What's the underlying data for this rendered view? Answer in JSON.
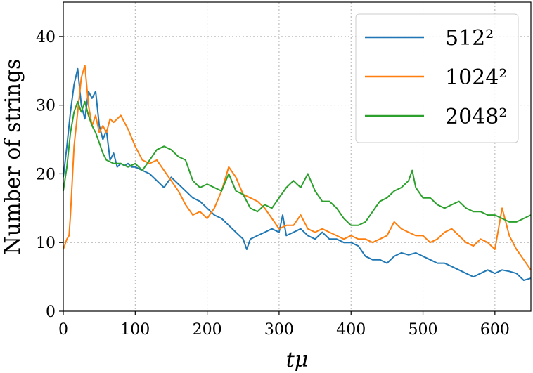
{
  "chart_data": {
    "type": "line",
    "xlabel": "tμ",
    "ylabel": "Number of strings",
    "xlim": [
      0,
      650
    ],
    "ylim": [
      0,
      45
    ],
    "xticks": [
      0,
      100,
      200,
      300,
      400,
      500,
      600
    ],
    "yticks": [
      0,
      10,
      20,
      30,
      40
    ],
    "grid": true,
    "legend_position": "top-right",
    "series": [
      {
        "name": "512²",
        "color": "#1f77b4",
        "x": [
          0,
          5,
          10,
          15,
          20,
          25,
          30,
          35,
          40,
          45,
          50,
          55,
          60,
          65,
          70,
          75,
          80,
          85,
          90,
          95,
          100,
          110,
          120,
          130,
          140,
          150,
          160,
          170,
          180,
          190,
          200,
          210,
          220,
          230,
          240,
          250,
          255,
          260,
          270,
          280,
          290,
          300,
          305,
          310,
          320,
          330,
          340,
          350,
          360,
          370,
          380,
          390,
          400,
          410,
          420,
          430,
          440,
          450,
          460,
          470,
          480,
          490,
          500,
          510,
          520,
          530,
          540,
          550,
          560,
          570,
          580,
          590,
          600,
          610,
          620,
          630,
          640,
          650
        ],
        "y": [
          19.5,
          24,
          29,
          33,
          35.3,
          30,
          28,
          32,
          31,
          32,
          27,
          25,
          26.3,
          22,
          23,
          21,
          21.5,
          21.2,
          21.5,
          21,
          21,
          20.5,
          20,
          19,
          18,
          19.5,
          18.5,
          17.5,
          16.5,
          16,
          15,
          14,
          13.5,
          12.5,
          11.5,
          10.5,
          9,
          10.5,
          11,
          11.5,
          12,
          11.5,
          14,
          11,
          11.5,
          12,
          11,
          10.5,
          11.5,
          10.5,
          10.5,
          10,
          10,
          9.5,
          8,
          7.5,
          7.5,
          7,
          8,
          8.5,
          8.2,
          8.5,
          8,
          7.5,
          7,
          7,
          6.5,
          6,
          5.5,
          5,
          5.5,
          6,
          5.5,
          6,
          5.8,
          5.5,
          4.5,
          4.8
        ]
      },
      {
        "name": "1024²",
        "color": "#ff7f0e",
        "x": [
          0,
          5,
          8,
          10,
          15,
          20,
          25,
          30,
          35,
          40,
          45,
          50,
          55,
          60,
          65,
          70,
          80,
          90,
          100,
          110,
          120,
          130,
          140,
          150,
          160,
          170,
          180,
          190,
          200,
          210,
          220,
          230,
          240,
          250,
          260,
          270,
          280,
          290,
          300,
          310,
          320,
          330,
          340,
          350,
          360,
          370,
          380,
          390,
          400,
          410,
          420,
          430,
          440,
          450,
          460,
          470,
          480,
          490,
          500,
          510,
          520,
          530,
          540,
          550,
          560,
          570,
          580,
          590,
          600,
          610,
          620,
          630,
          640,
          650
        ],
        "y": [
          9,
          10.5,
          11,
          14,
          24,
          29,
          34,
          35.8,
          30,
          27,
          28.5,
          26,
          27,
          26,
          28,
          27.5,
          28.5,
          26.5,
          24,
          22,
          21.5,
          22,
          20.5,
          19,
          17.5,
          15.5,
          14,
          14.5,
          13.5,
          15,
          17.5,
          21,
          19.5,
          17,
          16.5,
          16,
          15,
          13.5,
          12,
          12.5,
          12.5,
          14,
          12,
          11.5,
          12,
          11.5,
          11,
          10.5,
          11,
          10.5,
          10.5,
          10,
          10.5,
          11,
          13,
          12,
          11.5,
          11,
          11,
          10,
          10.5,
          11.5,
          12,
          11,
          10,
          9.5,
          10.5,
          10,
          9,
          15,
          11,
          9,
          7.5,
          6
        ]
      },
      {
        "name": "2048²",
        "color": "#2ca02c",
        "x": [
          0,
          5,
          10,
          15,
          20,
          25,
          30,
          35,
          40,
          45,
          50,
          55,
          60,
          70,
          80,
          90,
          100,
          110,
          120,
          130,
          140,
          150,
          160,
          170,
          180,
          190,
          200,
          210,
          220,
          230,
          240,
          250,
          260,
          270,
          280,
          290,
          300,
          310,
          320,
          330,
          340,
          350,
          360,
          370,
          380,
          390,
          400,
          410,
          420,
          430,
          440,
          450,
          460,
          470,
          480,
          485,
          490,
          500,
          510,
          520,
          530,
          540,
          550,
          560,
          570,
          580,
          590,
          600,
          610,
          620,
          630,
          640,
          650
        ],
        "y": [
          17.5,
          21,
          26,
          29,
          30.5,
          29,
          30.5,
          28.5,
          27,
          26,
          24.5,
          23,
          22,
          21.5,
          21.5,
          21,
          21.5,
          20.5,
          22,
          23.5,
          24,
          23.5,
          22.5,
          22,
          19,
          18,
          18.5,
          18,
          17.5,
          20,
          17.5,
          17,
          15,
          14.5,
          15.5,
          15,
          16.5,
          18,
          19,
          18,
          20,
          17.5,
          16,
          16,
          15,
          13.5,
          12.5,
          12.5,
          13,
          14.5,
          16,
          16.5,
          17.5,
          18,
          19,
          20.5,
          18,
          16.5,
          16.5,
          15.5,
          15,
          15.5,
          16,
          15,
          14.5,
          14.5,
          14,
          14,
          13.5,
          13,
          13,
          13.5,
          14
        ]
      }
    ]
  }
}
